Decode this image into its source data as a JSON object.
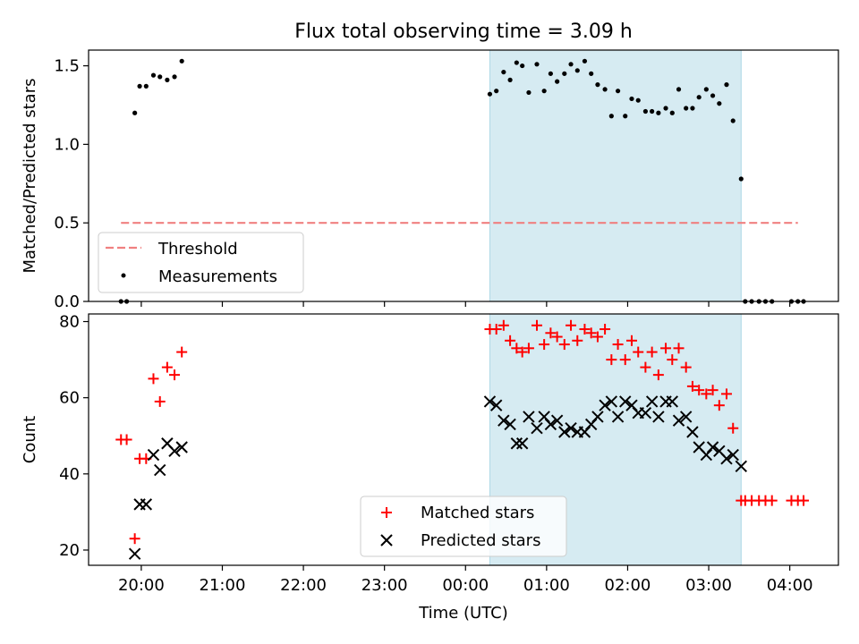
{
  "chart_data": [
    {
      "type": "scatter",
      "title": "Flux total observing time = 3.09 h",
      "xlabel": "",
      "ylabel": "Matched/Predicted stars",
      "x_unit": "hours (UTC, 24 = 00:00 next day)",
      "xlim": [
        19.35,
        28.6
      ],
      "ylim": [
        0,
        1.6
      ],
      "yticks": [
        "0.0",
        "0.5",
        "1.0",
        "1.5"
      ],
      "shaded_span": [
        24.3,
        27.4
      ],
      "shade_color": "#add8e6",
      "threshold": {
        "label": "Threshold",
        "y": 0.5,
        "x_range": [
          19.75,
          28.1
        ],
        "color": "#f08080"
      },
      "legend": {
        "location": "lower-left",
        "entries": [
          "Threshold",
          "Measurements"
        ]
      },
      "series": [
        {
          "name": "Measurements",
          "color": "#000000",
          "x": [
            19.75,
            19.82,
            19.92,
            19.98,
            20.06,
            20.15,
            20.23,
            20.32,
            20.41,
            20.5,
            24.3,
            24.38,
            24.47,
            24.55,
            24.63,
            24.7,
            24.78,
            24.88,
            24.97,
            25.05,
            25.13,
            25.22,
            25.3,
            25.38,
            25.47,
            25.55,
            25.63,
            25.72,
            25.8,
            25.88,
            25.97,
            26.05,
            26.13,
            26.22,
            26.3,
            26.38,
            26.47,
            26.55,
            26.63,
            26.72,
            26.8,
            26.88,
            26.97,
            27.05,
            27.13,
            27.22,
            27.3,
            27.4,
            27.45,
            27.53,
            27.62,
            27.7,
            27.78,
            28.02,
            28.1,
            28.17
          ],
          "y": [
            0,
            0,
            1.2,
            1.37,
            1.37,
            1.44,
            1.43,
            1.41,
            1.43,
            1.53,
            1.32,
            1.34,
            1.46,
            1.41,
            1.52,
            1.5,
            1.33,
            1.51,
            1.34,
            1.45,
            1.4,
            1.45,
            1.51,
            1.47,
            1.53,
            1.45,
            1.38,
            1.35,
            1.18,
            1.34,
            1.18,
            1.29,
            1.28,
            1.21,
            1.21,
            1.2,
            1.23,
            1.2,
            1.35,
            1.23,
            1.23,
            1.3,
            1.35,
            1.31,
            1.26,
            1.38,
            1.15,
            0.78,
            0,
            0,
            0,
            0,
            0,
            0,
            0,
            0
          ]
        }
      ]
    },
    {
      "type": "scatter",
      "title": "",
      "xlabel": "Time (UTC)",
      "ylabel": "Count",
      "x_unit": "hours (UTC, 24 = 00:00 next day)",
      "xlim": [
        19.35,
        28.6
      ],
      "ylim": [
        16,
        82
      ],
      "yticks": [
        "20",
        "40",
        "60",
        "80"
      ],
      "xticks": [
        "20:00",
        "21:00",
        "22:00",
        "23:00",
        "00:00",
        "01:00",
        "02:00",
        "03:00",
        "04:00"
      ],
      "shaded_span": [
        24.3,
        27.4
      ],
      "shade_color": "#add8e6",
      "legend": {
        "location": "lower-center",
        "entries": [
          "Matched stars",
          "Predicted stars"
        ]
      },
      "series": [
        {
          "name": "Matched stars",
          "marker": "+",
          "color": "#ff0000",
          "x": [
            19.75,
            19.82,
            19.92,
            19.98,
            20.06,
            20.15,
            20.23,
            20.32,
            20.41,
            20.5,
            24.3,
            24.38,
            24.47,
            24.55,
            24.63,
            24.7,
            24.78,
            24.88,
            24.97,
            25.05,
            25.13,
            25.22,
            25.3,
            25.38,
            25.47,
            25.55,
            25.63,
            25.72,
            25.8,
            25.88,
            25.97,
            26.05,
            26.13,
            26.22,
            26.3,
            26.38,
            26.47,
            26.55,
            26.63,
            26.72,
            26.8,
            26.88,
            26.97,
            27.05,
            27.13,
            27.22,
            27.3,
            27.4,
            27.45,
            27.53,
            27.62,
            27.7,
            27.78,
            28.02,
            28.1,
            28.17
          ],
          "y": [
            49,
            49,
            23,
            44,
            44,
            65,
            59,
            68,
            66,
            72,
            78,
            78,
            79,
            75,
            73,
            72,
            73,
            79,
            74,
            77,
            76,
            74,
            79,
            75,
            78,
            77,
            76,
            78,
            70,
            74,
            70,
            75,
            72,
            68,
            72,
            66,
            73,
            70,
            73,
            68,
            63,
            62,
            61,
            62,
            58,
            61,
            52,
            33,
            33,
            33,
            33,
            33,
            33,
            33,
            33,
            33
          ]
        },
        {
          "name": "Predicted stars",
          "marker": "x",
          "color": "#000000",
          "x": [
            19.92,
            19.98,
            20.06,
            20.15,
            20.23,
            20.32,
            20.41,
            20.5,
            24.3,
            24.38,
            24.47,
            24.55,
            24.63,
            24.7,
            24.78,
            24.88,
            24.97,
            25.05,
            25.13,
            25.22,
            25.3,
            25.38,
            25.47,
            25.55,
            25.63,
            25.72,
            25.8,
            25.88,
            25.97,
            26.05,
            26.13,
            26.22,
            26.3,
            26.38,
            26.47,
            26.55,
            26.63,
            26.72,
            26.8,
            26.88,
            26.97,
            27.05,
            27.13,
            27.22,
            27.3,
            27.4
          ],
          "y": [
            19,
            32,
            32,
            45,
            41,
            48,
            46,
            47,
            59,
            58,
            54,
            53,
            48,
            48,
            55,
            52,
            55,
            53,
            54,
            51,
            52,
            51,
            51,
            53,
            55,
            58,
            59,
            55,
            59,
            58,
            56,
            56,
            59,
            55,
            59,
            59,
            54,
            55,
            51,
            47,
            45,
            47,
            46,
            44,
            45,
            42
          ]
        }
      ]
    }
  ]
}
